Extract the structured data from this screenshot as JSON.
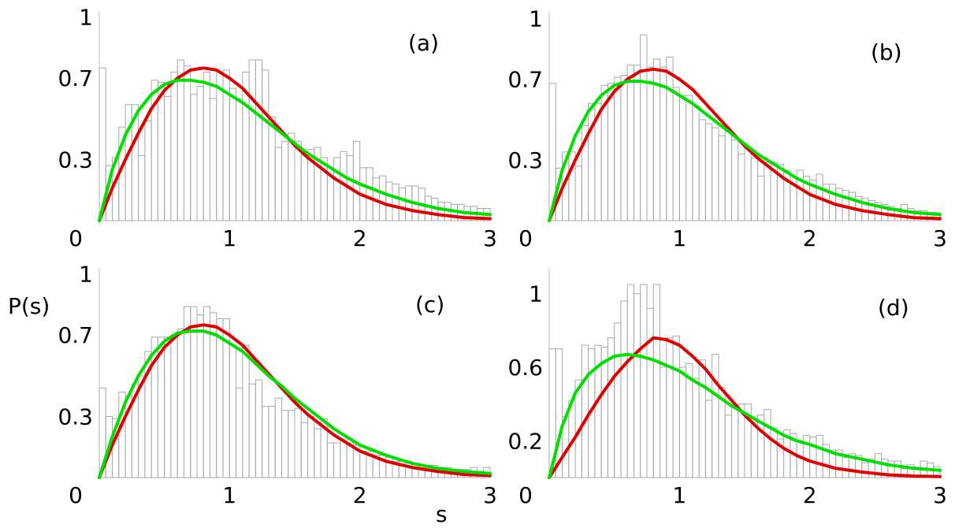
{
  "figure": {
    "ylabel": "P(s)",
    "xlabel": "s"
  },
  "chart_data": [
    {
      "panel": "(a)",
      "type": "bar",
      "bin_width": 0.05,
      "xlim": [
        0,
        3
      ],
      "ylim": [
        0,
        1.03
      ],
      "xticks": [
        "0",
        "1",
        "2",
        "3"
      ],
      "yticks": [
        "0.3",
        "0.7",
        "1"
      ],
      "ytick_values": [
        0.3,
        0.7,
        1
      ],
      "values": [
        0.75,
        0.27,
        0.31,
        0.46,
        0.57,
        0.57,
        0.32,
        0.49,
        0.69,
        0.68,
        0.61,
        0.73,
        0.79,
        0.76,
        0.62,
        0.66,
        0.73,
        0.6,
        0.73,
        0.74,
        0.65,
        0.6,
        0.73,
        0.79,
        0.79,
        0.74,
        0.51,
        0.36,
        0.39,
        0.43,
        0.39,
        0.32,
        0.35,
        0.36,
        0.31,
        0.26,
        0.31,
        0.34,
        0.32,
        0.39,
        0.26,
        0.26,
        0.21,
        0.22,
        0.19,
        0.18,
        0.16,
        0.17,
        0.17,
        0.16,
        0.12,
        0.11,
        0.09,
        0.09,
        0.08,
        0.08,
        0.07,
        0.07,
        0.06,
        0.06
      ],
      "series": [
        {
          "name": "",
          "color": "#e00000",
          "x": [
            0,
            0.1,
            0.2,
            0.3,
            0.4,
            0.5,
            0.6,
            0.7,
            0.8,
            0.9,
            1,
            1.1,
            1.2,
            1.3,
            1.4,
            1.5,
            1.6,
            1.7,
            1.8,
            1.9,
            2,
            2.2,
            2.4,
            2.6,
            2.8,
            3
          ],
          "y": [
            0,
            0.16,
            0.3,
            0.43,
            0.55,
            0.64,
            0.7,
            0.74,
            0.75,
            0.74,
            0.7,
            0.65,
            0.58,
            0.51,
            0.44,
            0.37,
            0.31,
            0.26,
            0.21,
            0.17,
            0.13,
            0.08,
            0.05,
            0.03,
            0.015,
            0.01
          ]
        },
        {
          "name": "",
          "color": "#00e000",
          "x": [
            0,
            0.1,
            0.2,
            0.3,
            0.4,
            0.5,
            0.6,
            0.7,
            0.8,
            0.9,
            1,
            1.1,
            1.2,
            1.3,
            1.4,
            1.5,
            1.6,
            1.7,
            1.8,
            1.9,
            2,
            2.2,
            2.4,
            2.6,
            2.8,
            3
          ],
          "y": [
            0,
            0.25,
            0.42,
            0.54,
            0.62,
            0.67,
            0.69,
            0.69,
            0.68,
            0.66,
            0.62,
            0.58,
            0.53,
            0.48,
            0.43,
            0.38,
            0.33,
            0.29,
            0.25,
            0.21,
            0.18,
            0.13,
            0.09,
            0.06,
            0.04,
            0.03
          ]
        }
      ]
    },
    {
      "panel": "(b)",
      "type": "bar",
      "bin_width": 0.05,
      "xlim": [
        0,
        3
      ],
      "ylim": [
        0,
        1.03
      ],
      "xticks": [
        "0",
        "1",
        "2",
        "3"
      ],
      "yticks": [
        "0.3",
        "0.7",
        "1"
      ],
      "ytick_values": [
        0.3,
        0.7,
        1
      ],
      "values": [
        0.68,
        0.26,
        0.34,
        0.34,
        0.27,
        0.47,
        0.58,
        0.58,
        0.67,
        0.68,
        0.71,
        0.72,
        0.77,
        0.77,
        0.92,
        0.76,
        0.8,
        0.76,
        0.81,
        0.66,
        0.62,
        0.62,
        0.57,
        0.5,
        0.48,
        0.46,
        0.42,
        0.44,
        0.4,
        0.33,
        0.36,
        0.31,
        0.22,
        0.29,
        0.29,
        0.28,
        0.25,
        0.22,
        0.25,
        0.22,
        0.2,
        0.23,
        0.18,
        0.18,
        0.16,
        0.15,
        0.14,
        0.12,
        0.11,
        0.1,
        0.09,
        0.08,
        0.07,
        0.06,
        0.08,
        0.06,
        0.05,
        0.05,
        0.04,
        0.04
      ],
      "series": [
        {
          "name": "",
          "color": "#e00000",
          "x": [
            0,
            0.1,
            0.2,
            0.3,
            0.4,
            0.5,
            0.6,
            0.7,
            0.8,
            0.9,
            1,
            1.1,
            1.2,
            1.3,
            1.4,
            1.5,
            1.6,
            1.7,
            1.8,
            1.9,
            2,
            2.2,
            2.4,
            2.6,
            2.8,
            3
          ],
          "y": [
            0,
            0.16,
            0.3,
            0.43,
            0.55,
            0.64,
            0.7,
            0.74,
            0.75,
            0.74,
            0.7,
            0.65,
            0.58,
            0.51,
            0.44,
            0.37,
            0.31,
            0.26,
            0.21,
            0.17,
            0.13,
            0.08,
            0.05,
            0.03,
            0.015,
            0.01
          ]
        },
        {
          "name": "",
          "color": "#00e000",
          "x": [
            0,
            0.1,
            0.2,
            0.3,
            0.4,
            0.5,
            0.6,
            0.7,
            0.8,
            0.9,
            1,
            1.1,
            1.2,
            1.3,
            1.4,
            1.5,
            1.6,
            1.7,
            1.8,
            1.9,
            2,
            2.2,
            2.4,
            2.6,
            2.8,
            3
          ],
          "y": [
            0,
            0.25,
            0.42,
            0.54,
            0.62,
            0.67,
            0.69,
            0.69,
            0.68,
            0.66,
            0.62,
            0.58,
            0.53,
            0.48,
            0.43,
            0.38,
            0.33,
            0.29,
            0.25,
            0.21,
            0.18,
            0.13,
            0.09,
            0.06,
            0.04,
            0.03
          ]
        }
      ]
    },
    {
      "panel": "(c)",
      "type": "bar",
      "bin_width": 0.05,
      "xlim": [
        0,
        3
      ],
      "ylim": [
        0,
        1.03
      ],
      "xticks": [
        "0",
        "1",
        "2",
        "3"
      ],
      "yticks": [
        "0.3",
        "0.7",
        "1"
      ],
      "ytick_values": [
        0.3,
        0.7,
        1
      ],
      "values": [
        0.44,
        0.3,
        0.29,
        0.42,
        0.4,
        0.46,
        0.5,
        0.62,
        0.69,
        0.69,
        0.69,
        0.7,
        0.73,
        0.84,
        0.84,
        0.8,
        0.84,
        0.81,
        0.78,
        0.78,
        0.65,
        0.44,
        0.65,
        0.46,
        0.48,
        0.35,
        0.35,
        0.39,
        0.33,
        0.33,
        0.34,
        0.27,
        0.3,
        0.24,
        0.29,
        0.17,
        0.17,
        0.19,
        0.17,
        0.16,
        0.13,
        0.13,
        0.11,
        0.11,
        0.1,
        0.08,
        0.08,
        0.08,
        0.07,
        0.06,
        0.06,
        0.06,
        0.05,
        0.05,
        0.04,
        0.04,
        0.04,
        0.05,
        0.03,
        0.05
      ],
      "series": [
        {
          "name": "",
          "color": "#e00000",
          "x": [
            0,
            0.1,
            0.2,
            0.3,
            0.4,
            0.5,
            0.6,
            0.7,
            0.8,
            0.9,
            1,
            1.1,
            1.2,
            1.3,
            1.4,
            1.5,
            1.6,
            1.7,
            1.8,
            1.9,
            2,
            2.2,
            2.4,
            2.6,
            2.8,
            3
          ],
          "y": [
            0,
            0.16,
            0.3,
            0.43,
            0.55,
            0.64,
            0.7,
            0.74,
            0.75,
            0.74,
            0.7,
            0.65,
            0.58,
            0.51,
            0.44,
            0.37,
            0.31,
            0.26,
            0.21,
            0.17,
            0.13,
            0.08,
            0.05,
            0.03,
            0.015,
            0.01
          ]
        },
        {
          "name": "",
          "color": "#00e000",
          "x": [
            0,
            0.1,
            0.2,
            0.3,
            0.4,
            0.5,
            0.6,
            0.7,
            0.8,
            0.9,
            1,
            1.1,
            1.2,
            1.3,
            1.4,
            1.5,
            1.6,
            1.7,
            1.8,
            1.9,
            2,
            2.2,
            2.4,
            2.6,
            2.8,
            3
          ],
          "y": [
            0,
            0.2,
            0.37,
            0.5,
            0.6,
            0.67,
            0.71,
            0.72,
            0.72,
            0.7,
            0.66,
            0.62,
            0.56,
            0.5,
            0.45,
            0.39,
            0.34,
            0.29,
            0.24,
            0.2,
            0.16,
            0.11,
            0.07,
            0.045,
            0.03,
            0.02
          ]
        }
      ]
    },
    {
      "panel": "(d)",
      "type": "bar",
      "bin_width": 0.05,
      "xlim": [
        0,
        3
      ],
      "ylim": [
        0,
        1.14
      ],
      "xticks": [
        "0",
        "1",
        "2",
        "3"
      ],
      "yticks": [
        "0.2",
        "0.6",
        "1"
      ],
      "ytick_values": [
        0.2,
        0.6,
        1
      ],
      "values": [
        0.7,
        0.7,
        0.33,
        0.42,
        0.53,
        0.72,
        0.7,
        0.72,
        0.71,
        0.76,
        0.84,
        0.96,
        1.05,
        1.0,
        1.05,
        0.92,
        1.05,
        0.6,
        0.76,
        0.77,
        0.6,
        0.62,
        0.54,
        0.64,
        0.42,
        0.67,
        0.49,
        0.34,
        0.39,
        0.4,
        0.4,
        0.3,
        0.34,
        0.37,
        0.27,
        0.21,
        0.26,
        0.24,
        0.2,
        0.23,
        0.22,
        0.23,
        0.18,
        0.15,
        0.15,
        0.11,
        0.13,
        0.12,
        0.08,
        0.1,
        0.13,
        0.1,
        0.09,
        0.09,
        0.05,
        0.07,
        0.05,
        0.09,
        0.08,
        0.06
      ],
      "series": [
        {
          "name": "",
          "color": "#e00000",
          "x": [
            0,
            0.1,
            0.2,
            0.3,
            0.4,
            0.5,
            0.6,
            0.7,
            0.8,
            0.9,
            1,
            1.1,
            1.2,
            1.3,
            1.4,
            1.5,
            1.6,
            1.7,
            1.8,
            1.9,
            2,
            2.2,
            2.4,
            2.6,
            2.8,
            3
          ],
          "y": [
            0,
            0.11,
            0.22,
            0.34,
            0.45,
            0.55,
            0.63,
            0.7,
            0.76,
            0.75,
            0.72,
            0.66,
            0.59,
            0.5,
            0.42,
            0.34,
            0.27,
            0.21,
            0.16,
            0.12,
            0.09,
            0.05,
            0.03,
            0.015,
            0.008,
            0.005
          ]
        },
        {
          "name": "",
          "color": "#00e000",
          "x": [
            0,
            0.1,
            0.2,
            0.3,
            0.4,
            0.5,
            0.6,
            0.7,
            0.8,
            0.9,
            1,
            1.1,
            1.2,
            1.3,
            1.4,
            1.5,
            1.6,
            1.7,
            1.8,
            1.9,
            2,
            2.2,
            2.4,
            2.6,
            2.8,
            3
          ],
          "y": [
            0,
            0.28,
            0.46,
            0.56,
            0.62,
            0.66,
            0.67,
            0.66,
            0.64,
            0.61,
            0.58,
            0.53,
            0.49,
            0.44,
            0.39,
            0.35,
            0.31,
            0.27,
            0.23,
            0.2,
            0.18,
            0.13,
            0.1,
            0.07,
            0.05,
            0.04
          ]
        }
      ]
    }
  ]
}
